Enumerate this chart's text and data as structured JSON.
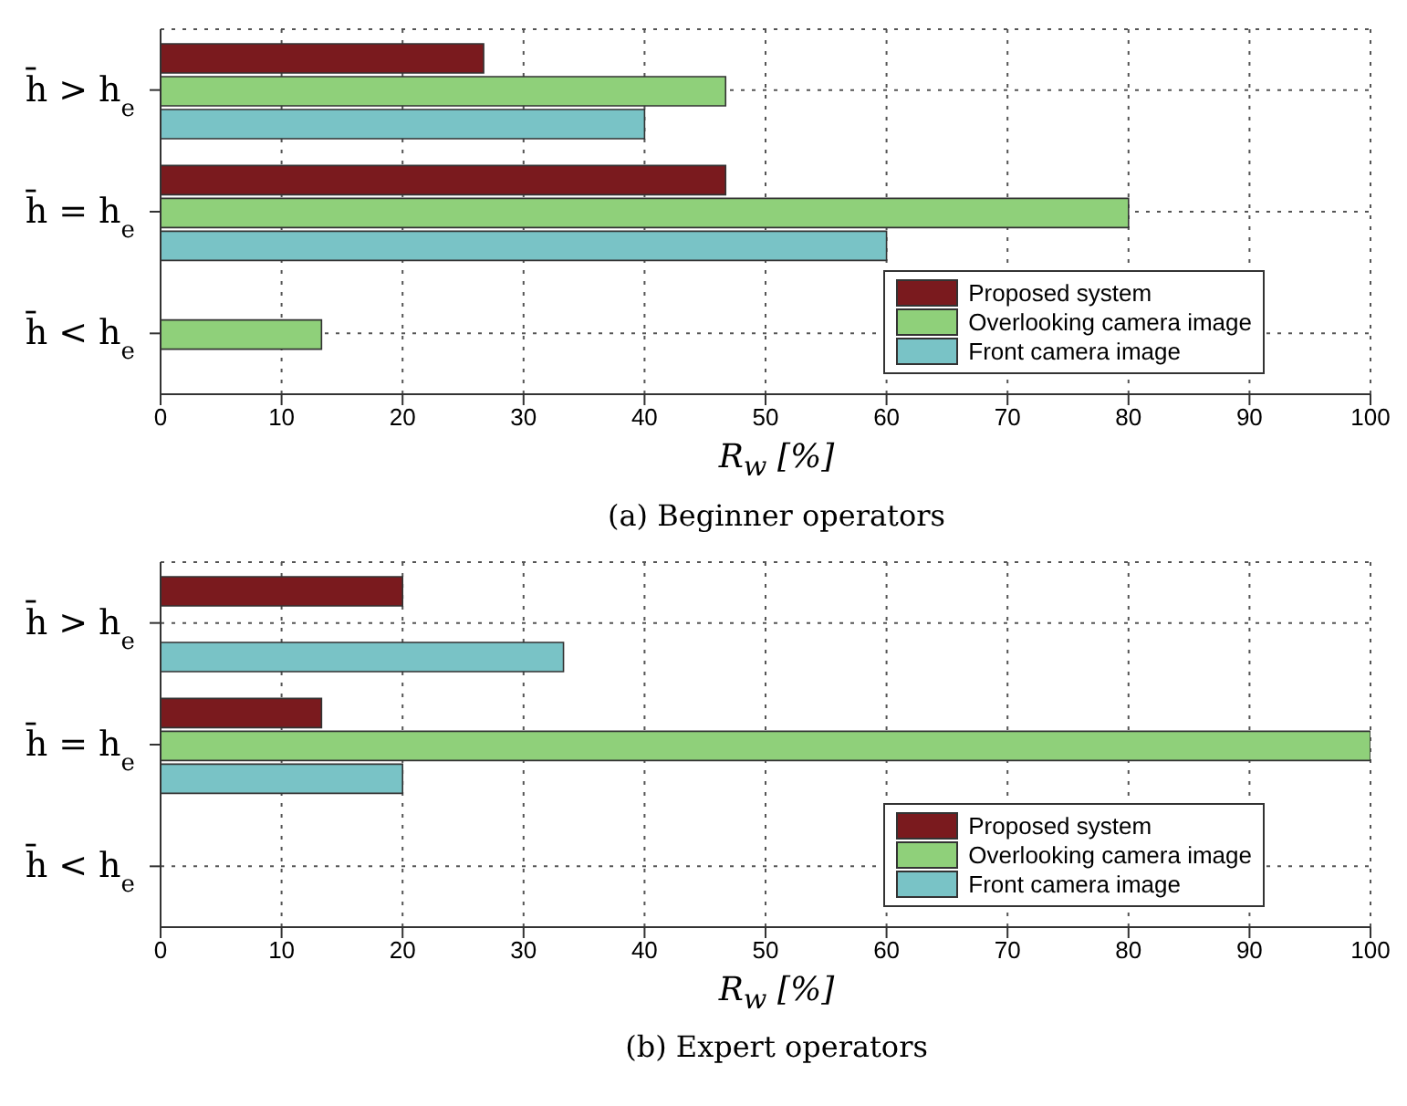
{
  "chart_data": [
    {
      "type": "bar",
      "title": "(a) Beginner operators",
      "orientation": "horizontal",
      "categories": [
        "h̄ > h$_{e}$",
        "h̄ = h$_{e}$",
        "h̄ < h$_{e}$"
      ],
      "xlabel": "R$_{w}$ [%]",
      "xlim": [
        0,
        100
      ],
      "xticks": [
        0,
        10,
        20,
        30,
        40,
        50,
        60,
        70,
        80,
        90,
        100
      ],
      "grid": true,
      "line_style": "dotted",
      "legend": "bottom right",
      "series": [
        {
          "name": "Proposed system",
          "color": "#7a1a1e",
          "values": [
            26.7,
            46.7,
            0
          ]
        },
        {
          "name": "Overlooking camera image",
          "color": "#8fd07a",
          "values": [
            46.7,
            80,
            13.3
          ]
        },
        {
          "name": "Front camera image",
          "color": "#79c3c6",
          "values": [
            40,
            60,
            0
          ]
        }
      ]
    },
    {
      "type": "bar",
      "title": "(b) Expert operators",
      "orientation": "horizontal",
      "categories": [
        "h̄ > h$_{e}$",
        "h̄ = h$_{e}$",
        "h̄ < h$_{e}$"
      ],
      "xlabel": "R$_{w}$ [%]",
      "xlim": [
        0,
        100
      ],
      "xticks": [
        0,
        10,
        20,
        30,
        40,
        50,
        60,
        70,
        80,
        90,
        100
      ],
      "grid": true,
      "line_style": "dotted",
      "legend": "bottom right",
      "series": [
        {
          "name": "Proposed system",
          "color": "#7a1a1e",
          "values": [
            20,
            13.3,
            0
          ]
        },
        {
          "name": "Overlooking camera image",
          "color": "#8fd07a",
          "values": [
            0,
            100,
            0
          ]
        },
        {
          "name": "Front camera image",
          "color": "#79c3c6",
          "values": [
            33.3,
            20,
            0
          ]
        }
      ]
    }
  ]
}
